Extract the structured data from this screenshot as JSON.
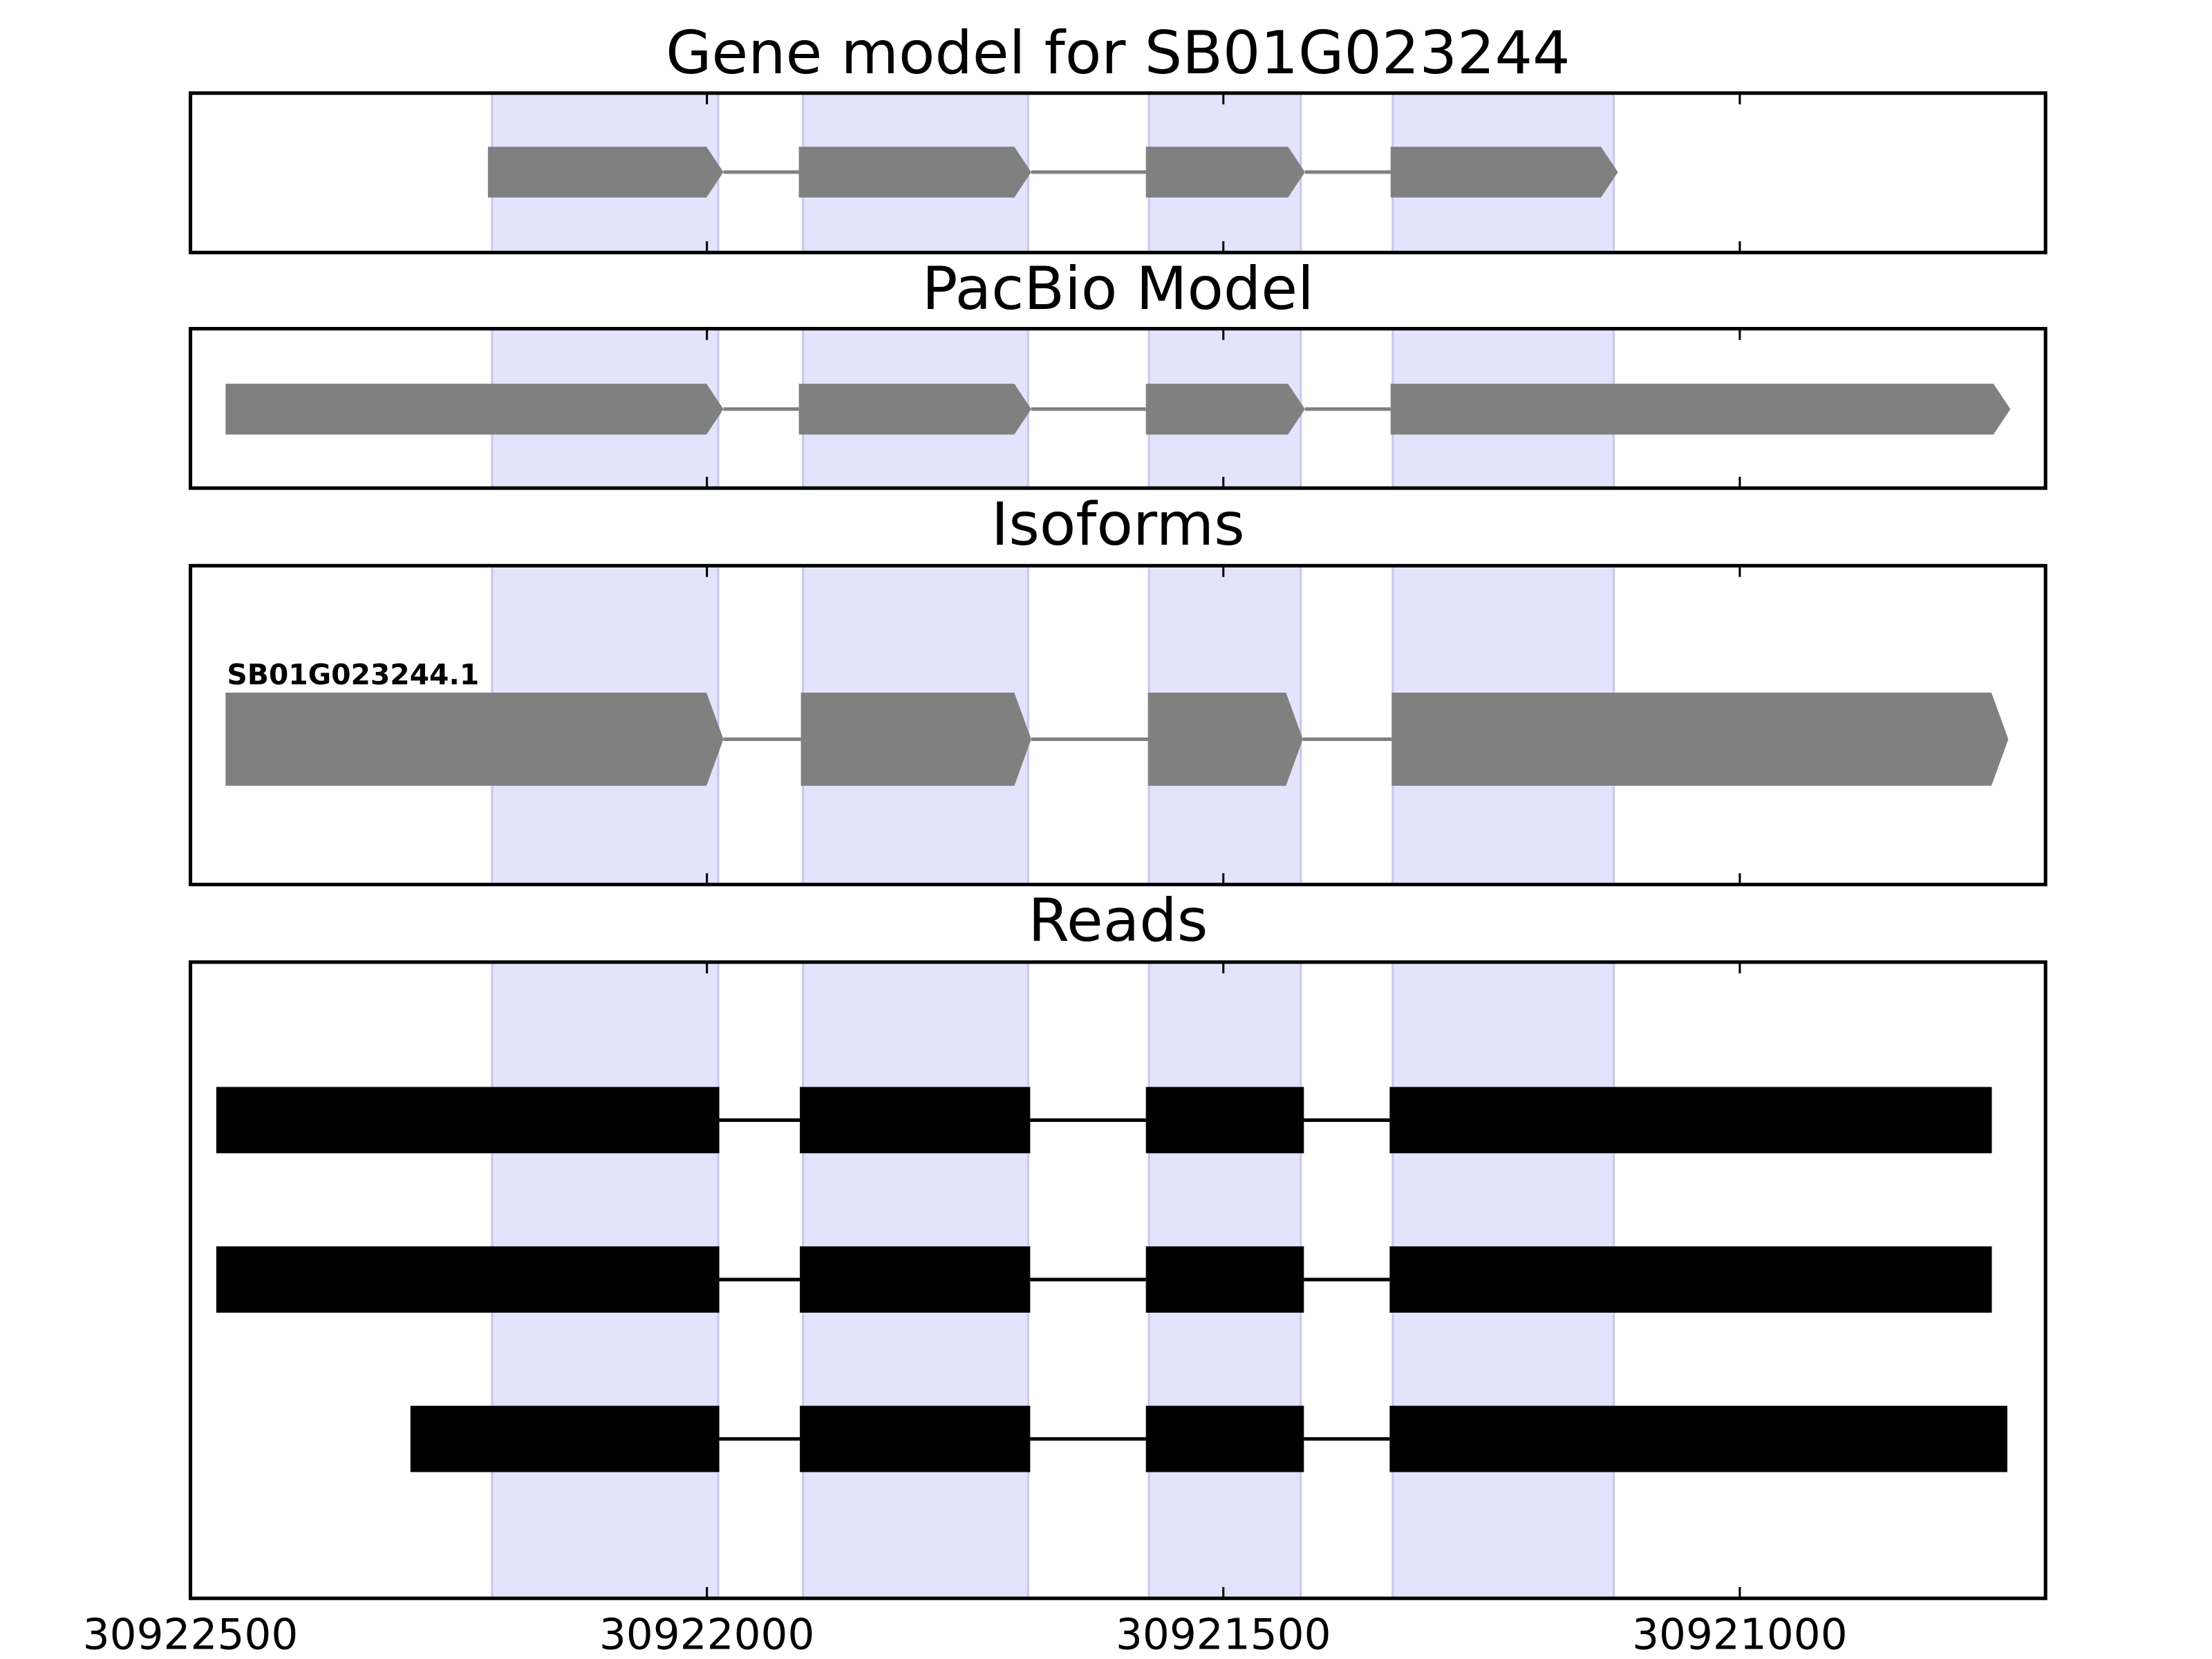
{
  "chart_data": {
    "type": "gene-track",
    "xlim": [
      30922500,
      30920704
    ],
    "xticks": [
      30922500,
      30922000,
      30921500,
      30921000
    ],
    "highlight_color": "#e3e3fb",
    "highlight_regions": [
      [
        30922208,
        30921989
      ],
      [
        30921907,
        30921689
      ],
      [
        30921572,
        30921425
      ],
      [
        30921336,
        30921122
      ]
    ],
    "panels": [
      {
        "title": "Gene model for SB01G023244",
        "style": "arrow",
        "color": "#808080",
        "features": [
          {
            "exons": [
              [
                30922212,
                30921984
              ],
              [
                30921911,
                30921686
              ],
              [
                30921575,
                30921421
              ],
              [
                30921338,
                30921118
              ]
            ]
          }
        ]
      },
      {
        "title": "PacBio Model",
        "style": "arrow",
        "color": "#808080",
        "features": [
          {
            "exons": [
              [
                30922466,
                30921984
              ],
              [
                30921911,
                30921686
              ],
              [
                30921575,
                30921421
              ],
              [
                30921338,
                30920738
              ]
            ]
          }
        ]
      },
      {
        "title": "Isoforms",
        "style": "arrow",
        "color": "#808080",
        "features": [
          {
            "label": "SB01G023244.1",
            "exons": [
              [
                30922466,
                30921984
              ],
              [
                30921909,
                30921686
              ],
              [
                30921573,
                30921423
              ],
              [
                30921337,
                30920740
              ]
            ]
          }
        ]
      },
      {
        "title": "Reads",
        "style": "box",
        "color": "#000000",
        "features": [
          {
            "exons": [
              [
                30922475,
                30921988
              ],
              [
                30921910,
                30921687
              ],
              [
                30921575,
                30921422
              ],
              [
                30921339,
                30920756
              ]
            ]
          },
          {
            "exons": [
              [
                30922475,
                30921988
              ],
              [
                30921910,
                30921687
              ],
              [
                30921575,
                30921422
              ],
              [
                30921339,
                30920756
              ]
            ]
          },
          {
            "exons": [
              [
                30922287,
                30921988
              ],
              [
                30921910,
                30921687
              ],
              [
                30921575,
                30921422
              ],
              [
                30921339,
                30920741
              ]
            ]
          }
        ]
      }
    ]
  }
}
